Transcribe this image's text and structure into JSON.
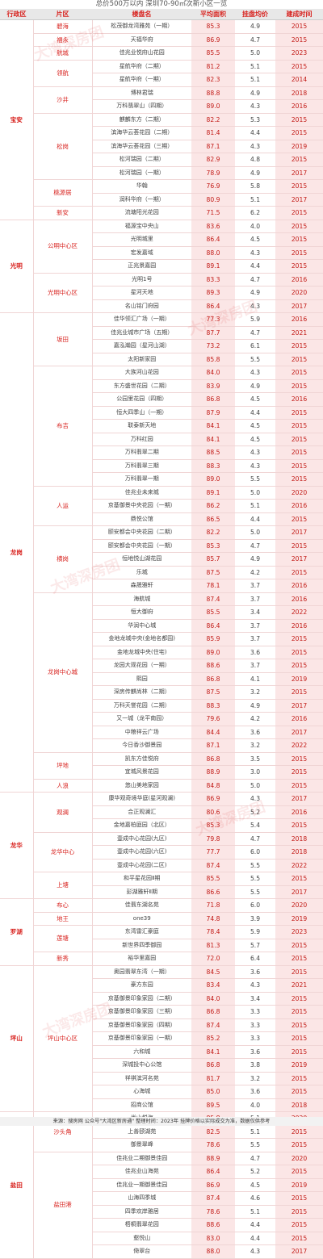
{
  "title": "总价500万以内 深圳70-90㎡次新小区一览",
  "headers": [
    "行政区",
    "片区",
    "楼盘名",
    "平均面积",
    "挂盘均价",
    "建成时间"
  ],
  "watermark": "大湾深房团",
  "source": "来源：搜房网 公众号\"大湾区新房通\"  整理时间：2023年 挂牌价格以实际成交为准，数据仅供参考",
  "colors": {
    "accent": "#d8231f",
    "shade": "#fbe6e6",
    "header_bg": "#e8e8e8"
  },
  "rows": [
    {
      "dist": "宝安",
      "area": "碧海",
      "name": "松茂御龙湾雅苑（一期）",
      "size": "85.3",
      "price": "4.9",
      "year": "2015"
    },
    {
      "dist": "宝安",
      "area": "福永",
      "name": "天福华府",
      "size": "86.9",
      "price": "4.7",
      "year": "2015"
    },
    {
      "dist": "宝安",
      "area": "航城",
      "name": "佳兆业悦府山花园",
      "size": "85.5",
      "price": "5.0",
      "year": "2023"
    },
    {
      "dist": "宝安",
      "area": "领航",
      "name": "星航华府（二期）",
      "size": "81.2",
      "price": "5.1",
      "year": "2015"
    },
    {
      "dist": "宝安",
      "area": "领航",
      "name": "星航华府（一期）",
      "size": "82.3",
      "price": "5.1",
      "year": "2014"
    },
    {
      "dist": "宝安",
      "area": "沙井",
      "name": "博林君瑞",
      "size": "88.8",
      "price": "4.9",
      "year": "2018"
    },
    {
      "dist": "宝安",
      "area": "沙井",
      "name": "万科翡翠山（四期）",
      "size": "89.0",
      "price": "4.3",
      "year": "2016"
    },
    {
      "dist": "宝安",
      "area": "松岗",
      "name": "麒麟东方（二期）",
      "size": "82.2",
      "price": "5.3",
      "year": "2015"
    },
    {
      "dist": "宝安",
      "area": "松岗",
      "name": "滨海华云荟花园（二期）",
      "size": "81.4",
      "price": "4.4",
      "year": "2015"
    },
    {
      "dist": "宝安",
      "area": "松岗",
      "name": "滨海华云荟花园（三期）",
      "size": "87.1",
      "price": "4.3",
      "year": "2019"
    },
    {
      "dist": "宝安",
      "area": "松岗",
      "name": "松河瑞园（二期）",
      "size": "82.9",
      "price": "4.8",
      "year": "2015"
    },
    {
      "dist": "宝安",
      "area": "松岗",
      "name": "松河瑞园（一期）",
      "size": "78.9",
      "price": "4.9",
      "year": "2017"
    },
    {
      "dist": "宝安",
      "area": "桃源居",
      "name": "华翰",
      "size": "76.9",
      "price": "5.8",
      "year": "2015"
    },
    {
      "dist": "宝安",
      "area": "桃源居",
      "name": "润科华府（一期）",
      "size": "80.9",
      "price": "5.1",
      "year": "2017"
    },
    {
      "dist": "宝安",
      "area": "新安",
      "name": "流塘阳光花园",
      "size": "71.5",
      "price": "6.2",
      "year": "2015"
    },
    {
      "dist": "光明",
      "area": "公明中心区",
      "name": "福源宝中央山",
      "size": "83.6",
      "price": "4.0",
      "year": "2015"
    },
    {
      "dist": "光明",
      "area": "公明中心区",
      "name": "光明城里",
      "size": "86.4",
      "price": "4.5",
      "year": "2015"
    },
    {
      "dist": "光明",
      "area": "公明中心区",
      "name": "宏发嘉域",
      "size": "88.0",
      "price": "4.3",
      "year": "2015"
    },
    {
      "dist": "光明",
      "area": "公明中心区",
      "name": "正兆景嘉园",
      "size": "89.1",
      "price": "4.4",
      "year": "2015"
    },
    {
      "dist": "光明",
      "area": "光明中心区",
      "name": "光明1号",
      "size": "83.3",
      "price": "4.7",
      "year": "2016"
    },
    {
      "dist": "光明",
      "area": "光明中心区",
      "name": "星河天地",
      "size": "89.3",
      "price": "4.9",
      "year": "2020"
    },
    {
      "dist": "光明",
      "area": "光明中心区",
      "name": "名山铭门府园",
      "size": "86.4",
      "price": "4.3",
      "year": "2017"
    },
    {
      "dist": "龙岗",
      "area": "坂田",
      "name": "佳华领汇广场（一期）",
      "size": "77.3",
      "price": "5.9",
      "year": "2016"
    },
    {
      "dist": "龙岗",
      "area": "坂田",
      "name": "佳兆业城市广场（五期）",
      "size": "87.7",
      "price": "4.7",
      "year": "2021"
    },
    {
      "dist": "龙岗",
      "area": "坂田",
      "name": "嘉泓瀚园（星河山湖）",
      "size": "73.2",
      "price": "6.1",
      "year": "2015"
    },
    {
      "dist": "龙岗",
      "area": "坂田",
      "name": "太阳新家园",
      "size": "85.8",
      "price": "5.5",
      "year": "2015"
    },
    {
      "dist": "龙岗",
      "area": "布吉",
      "name": "大族河山花园",
      "size": "84.0",
      "price": "4.3",
      "year": "2015"
    },
    {
      "dist": "龙岗",
      "area": "布吉",
      "name": "东方盛世花园（二期）",
      "size": "83.9",
      "price": "4.9",
      "year": "2015"
    },
    {
      "dist": "龙岗",
      "area": "布吉",
      "name": "公园里花园（四期）",
      "size": "86.8",
      "price": "4.5",
      "year": "2016"
    },
    {
      "dist": "龙岗",
      "area": "布吉",
      "name": "恒大四季山（一期）",
      "size": "87.9",
      "price": "4.4",
      "year": "2015"
    },
    {
      "dist": "龙岗",
      "area": "布吉",
      "name": "联泰新天地",
      "size": "84.1",
      "price": "4.5",
      "year": "2015"
    },
    {
      "dist": "龙岗",
      "area": "布吉",
      "name": "万科红园",
      "size": "84.1",
      "price": "4.5",
      "year": "2015"
    },
    {
      "dist": "龙岗",
      "area": "布吉",
      "name": "万科翡翠二期",
      "size": "88.5",
      "price": "4.3",
      "year": "2015"
    },
    {
      "dist": "龙岗",
      "area": "布吉",
      "name": "万科翡翠三期",
      "size": "88.3",
      "price": "4.3",
      "year": "2015"
    },
    {
      "dist": "龙岗",
      "area": "布吉",
      "name": "万科翡翠一期",
      "size": "89.0",
      "price": "5.5",
      "year": "2015"
    },
    {
      "dist": "龙岗",
      "area": "人运",
      "name": "佳兆业未来城",
      "size": "89.1",
      "price": "5.0",
      "year": "2020"
    },
    {
      "dist": "龙岗",
      "area": "人运",
      "name": "京基御景中央花园（一期）",
      "size": "86.2",
      "price": "5.1",
      "year": "2016"
    },
    {
      "dist": "龙岗",
      "area": "人运",
      "name": "鼎悦公馆",
      "size": "86.5",
      "price": "4.4",
      "year": "2015"
    },
    {
      "dist": "龙岗",
      "area": "横岗",
      "name": "颐安都会中央花园（二期）",
      "size": "82.2",
      "price": "5.0",
      "year": "2017"
    },
    {
      "dist": "龙岗",
      "area": "横岗",
      "name": "颐安都会中央花园（一期）",
      "size": "85.3",
      "price": "4.7",
      "year": "2015"
    },
    {
      "dist": "龙岗",
      "area": "横岗",
      "name": "恒地悦山湖花园",
      "size": "85.7",
      "price": "4.9",
      "year": "2017"
    },
    {
      "dist": "龙岗",
      "area": "横岗",
      "name": "乐城",
      "size": "87.5",
      "price": "4.2",
      "year": "2015"
    },
    {
      "dist": "龙岗",
      "area": "横岗",
      "name": "森晟雅轩",
      "size": "78.1",
      "price": "3.7",
      "year": "2016"
    },
    {
      "dist": "龙岗",
      "area": "龙岗中心城",
      "name": "海航城",
      "size": "87.4",
      "price": "3.7",
      "year": "2016"
    },
    {
      "dist": "龙岗",
      "area": "龙岗中心城",
      "name": "恒大御府",
      "size": "85.5",
      "price": "3.4",
      "year": "2022"
    },
    {
      "dist": "龙岗",
      "area": "龙岗中心城",
      "name": "华润中心城",
      "size": "86.4",
      "price": "3.7",
      "year": "2016"
    },
    {
      "dist": "龙岗",
      "area": "龙岗中心城",
      "name": "金地龙城中央(金地名都园)",
      "size": "85.9",
      "price": "3.7",
      "year": "2015"
    },
    {
      "dist": "龙岗",
      "area": "龙岗中心城",
      "name": "金地龙城中央(住宅)",
      "size": "89.0",
      "price": "3.6",
      "year": "2015"
    },
    {
      "dist": "龙岗",
      "area": "龙岗中心城",
      "name": "龙园大观花园（一期）",
      "size": "88.6",
      "price": "3.7",
      "year": "2015"
    },
    {
      "dist": "龙岗",
      "area": "龙岗中心城",
      "name": "熙园",
      "size": "86.8",
      "price": "4.1",
      "year": "2019"
    },
    {
      "dist": "龙岗",
      "area": "龙岗中心城",
      "name": "深房传麒尚林（二期）",
      "size": "87.5",
      "price": "3.2",
      "year": "2015"
    },
    {
      "dist": "龙岗",
      "area": "龙岗中心城",
      "name": "万科天誉花园（二期）",
      "size": "88.3",
      "price": "4.9",
      "year": "2017"
    },
    {
      "dist": "龙岗",
      "area": "龙岗中心城",
      "name": "又一城（龙平南园）",
      "size": "79.6",
      "price": "4.2",
      "year": "2016"
    },
    {
      "dist": "龙岗",
      "area": "龙岗中心城",
      "name": "中粮祥云广场",
      "size": "84.4",
      "price": "3.6",
      "year": "2017"
    },
    {
      "dist": "龙岗",
      "area": "龙岗中心城",
      "name": "今日香沙御景园",
      "size": "87.1",
      "price": "3.2",
      "year": "2022"
    },
    {
      "dist": "龙岗",
      "area": "坪地",
      "name": "凯东方佳悦府",
      "size": "86.8",
      "price": "3.5",
      "year": "2015"
    },
    {
      "dist": "龙岗",
      "area": "坪地",
      "name": "宜城风景花园",
      "size": "88.9",
      "price": "3.0",
      "year": "2015"
    },
    {
      "dist": "龙岗",
      "area": "人浪",
      "name": "悠山美地家园",
      "size": "84.8",
      "price": "5.0",
      "year": "2015"
    },
    {
      "dist": "龙华",
      "area": "观澜",
      "name": "康华观奇境华庭(星河观澜)",
      "size": "86.9",
      "price": "4.3",
      "year": "2017"
    },
    {
      "dist": "龙华",
      "area": "观澜",
      "name": "合正观澜汇",
      "size": "80.6",
      "price": "5.2",
      "year": "2016"
    },
    {
      "dist": "龙华",
      "area": "观澜",
      "name": "金地嘉柏庭园（北区）",
      "size": "85.3",
      "price": "5.4",
      "year": "2015"
    },
    {
      "dist": "龙华",
      "area": "龙华中心",
      "name": "壹成中心花园(九区)",
      "size": "79.8",
      "price": "4.7",
      "year": "2018"
    },
    {
      "dist": "龙华",
      "area": "龙华中心",
      "name": "壹成中心花园(六区)",
      "size": "77.7",
      "price": "6.0",
      "year": "2018"
    },
    {
      "dist": "龙华",
      "area": "龙华中心",
      "name": "壹成中心花园(二区)",
      "size": "87.4",
      "price": "5.5",
      "year": "2022"
    },
    {
      "dist": "龙华",
      "area": "上塘",
      "name": "和平星花园Ⅱ期",
      "size": "85.5",
      "price": "5.5",
      "year": "2015"
    },
    {
      "dist": "龙华",
      "area": "上塘",
      "name": "彭湖雅轩Ⅱ期",
      "size": "86.6",
      "price": "5.5",
      "year": "2017"
    },
    {
      "dist": "罗湖",
      "area": "布心",
      "name": "佳翡东湖名苑",
      "size": "71.8",
      "price": "6.0",
      "year": "2020"
    },
    {
      "dist": "罗湖",
      "area": "地王",
      "name": "one39",
      "size": "74.8",
      "price": "3.9",
      "year": "2019"
    },
    {
      "dist": "罗湖",
      "area": "莲塘",
      "name": "东湾雷汇豪庭",
      "size": "78.4",
      "price": "5.9",
      "year": "2023"
    },
    {
      "dist": "罗湖",
      "area": "莲塘",
      "name": "新世界四季御园",
      "size": "81.3",
      "price": "5.7",
      "year": "2015"
    },
    {
      "dist": "罗湖",
      "area": "新秀",
      "name": "裕华里嘉园",
      "size": "72.0",
      "price": "6.4",
      "year": "2015"
    },
    {
      "dist": "坪山",
      "area": "坪山中心区",
      "name": "奥园翡翠东湾（一期）",
      "size": "84.5",
      "price": "3.6",
      "year": "2015"
    },
    {
      "dist": "坪山",
      "area": "坪山中心区",
      "name": "豪方东园",
      "size": "83.4",
      "price": "4.3",
      "year": "2021"
    },
    {
      "dist": "坪山",
      "area": "坪山中心区",
      "name": "京基御景印象家园（二期）",
      "size": "84.0",
      "price": "3.4",
      "year": "2015"
    },
    {
      "dist": "坪山",
      "area": "坪山中心区",
      "name": "京基御景印象家园（三期）",
      "size": "86.8",
      "price": "3.3",
      "year": "2015"
    },
    {
      "dist": "坪山",
      "area": "坪山中心区",
      "name": "京基御景印象家园（四期）",
      "size": "87.4",
      "price": "3.3",
      "year": "2015"
    },
    {
      "dist": "坪山",
      "area": "坪山中心区",
      "name": "京基御景印象家园（一期）",
      "size": "85.2",
      "price": "3.3",
      "year": "2015"
    },
    {
      "dist": "坪山",
      "area": "坪山中心区",
      "name": "六和城",
      "size": "84.1",
      "price": "3.6",
      "year": "2015"
    },
    {
      "dist": "坪山",
      "area": "坪山中心区",
      "name": "深城投中心公馆",
      "size": "86.8",
      "price": "3.8",
      "year": "2019"
    },
    {
      "dist": "坪山",
      "area": "坪山中心区",
      "name": "祥祺滨河名苑",
      "size": "81.7",
      "price": "3.2",
      "year": "2015"
    },
    {
      "dist": "坪山",
      "area": "坪山中心区",
      "name": "心海城",
      "size": "85.0",
      "price": "3.6",
      "year": "2015"
    },
    {
      "dist": "坪山",
      "area": "坪山中心区",
      "name": "招商公馆",
      "size": "89.5",
      "price": "4.0",
      "year": "2018"
    },
    {
      "dist": "盐田",
      "area": "沙头角",
      "name": "半山悦海",
      "size": "85.8",
      "price": "5.1",
      "year": "2020"
    },
    {
      "dist": "盐田",
      "area": "沙头角",
      "name": "上善颐湖苑",
      "size": "82.5",
      "price": "5.1",
      "year": "2015"
    },
    {
      "dist": "盐田",
      "area": "沙头角",
      "name": "御景翠峰",
      "size": "78.6",
      "price": "5.5",
      "year": "2015"
    },
    {
      "dist": "盐田",
      "area": "盐田港",
      "name": "佳兆业二期御景佳园",
      "size": "88.9",
      "price": "4.7",
      "year": "2020"
    },
    {
      "dist": "盐田",
      "area": "盐田港",
      "name": "佳兆业山海苑",
      "size": "86.4",
      "price": "5.2",
      "year": "2015"
    },
    {
      "dist": "盐田",
      "area": "盐田港",
      "name": "佳兆业一期御景佳园",
      "size": "86.9",
      "price": "4.5",
      "year": "2019"
    },
    {
      "dist": "盐田",
      "area": "盐田港",
      "name": "山海四季城",
      "size": "87.4",
      "price": "4.6",
      "year": "2015"
    },
    {
      "dist": "盐田",
      "area": "盐田港",
      "name": "四季欢岸雅居",
      "size": "78.6",
      "price": "5.1",
      "year": "2015"
    },
    {
      "dist": "盐田",
      "area": "盐田港",
      "name": "梧桐翡翠花园",
      "size": "88.6",
      "price": "4.4",
      "year": "2015"
    },
    {
      "dist": "盐田",
      "area": "盐田港",
      "name": "壑悦山",
      "size": "83.0",
      "price": "4.4",
      "year": "2015"
    },
    {
      "dist": "盐田",
      "area": "盐田港",
      "name": "倚翠台",
      "size": "88.0",
      "price": "4.3",
      "year": "2017"
    }
  ]
}
